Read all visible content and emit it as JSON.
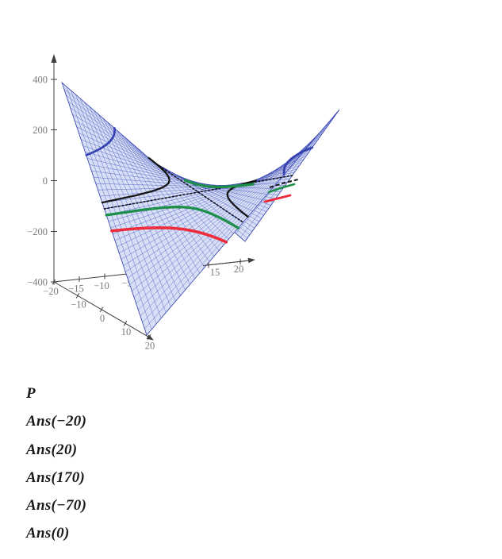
{
  "figure": {
    "legend_items": [
      "P",
      "Ans(−20)",
      "Ans(20)",
      "Ans(170)",
      "Ans(−70)",
      "Ans(0)"
    ]
  },
  "chart_data": {
    "type": "surface",
    "title": "",
    "function": "z = x*y",
    "surface_name": "P",
    "x_range": [
      -20,
      20
    ],
    "y_range": [
      -20,
      20
    ],
    "z_range": [
      -400,
      400
    ],
    "grid": true,
    "mesh_divisions": 20,
    "surface_fill_color": "#d6dff6",
    "mesh_line_color": "#4352bb",
    "edge_color": "#2c39a9",
    "axis_color": "#3f3f3f",
    "tick_label_color": "#7a7a7a",
    "z_ticks": [
      {
        "value": 400,
        "label": "400"
      },
      {
        "value": 200,
        "label": "200"
      },
      {
        "value": 0,
        "label": "0"
      },
      {
        "value": -200,
        "label": "−200"
      },
      {
        "value": -400,
        "label": "−400"
      }
    ],
    "right_axis_ticks": [
      {
        "value": -20,
        "label": "−20"
      },
      {
        "value": -15,
        "label": "−15"
      },
      {
        "value": -10,
        "label": "−10"
      },
      {
        "value": -5,
        "label": "−5"
      },
      {
        "value": 0,
        "label": ""
      },
      {
        "value": 5,
        "label": ""
      },
      {
        "value": 10,
        "label": ""
      },
      {
        "value": 15,
        "label": "15"
      },
      {
        "value": 20,
        "label": "20"
      }
    ],
    "front_axis_ticks": [
      {
        "value": -20,
        "label": ""
      },
      {
        "value": -10,
        "label": "−10"
      },
      {
        "value": 0,
        "label": "0"
      },
      {
        "value": 10,
        "label": "10"
      },
      {
        "value": 20,
        "label": "20"
      }
    ],
    "contours": [
      {
        "name": "Ans(170)",
        "level": 170,
        "color": "#343fb0",
        "style": "solid",
        "width": 2.7
      },
      {
        "name": "Ans(20)",
        "level": 20,
        "color": "#151515",
        "style": "solid",
        "width": 2.3
      },
      {
        "name": "Ans(0)",
        "level": 0,
        "color": "#151515",
        "style": "dotted",
        "width": 1.7
      },
      {
        "name": "Ans(−20)",
        "level": -20,
        "color": "#1d8f49",
        "style": "solid",
        "width": 3.3
      },
      {
        "name": "Ans(−70)",
        "level": -70,
        "color": "#ee2c3c",
        "style": "solid",
        "width": 3.6
      }
    ],
    "legend_position": "below"
  }
}
